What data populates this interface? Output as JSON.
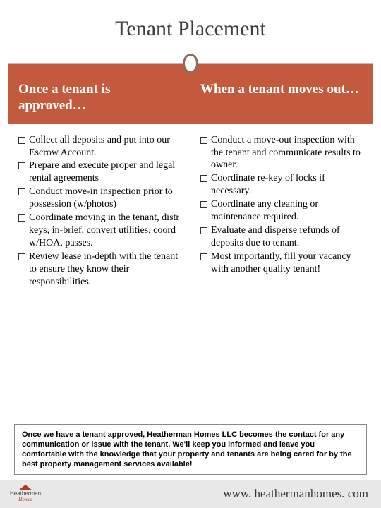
{
  "title": "Tenant Placement",
  "colors": {
    "header_bg": "#c45a3d",
    "header_text": "#ffffff",
    "title_text": "#3f3f3f",
    "body_text": "#000000",
    "divider_ring": "#8b6f5e",
    "bottom_bg": "#e8e8e8",
    "logo_accent": "#b33a2a"
  },
  "fonts": {
    "title_size": 30,
    "header_size": 19,
    "item_size": 14,
    "footer_size": 11,
    "url_size": 17
  },
  "left": {
    "heading": "Once a tenant is approved…",
    "items": [
      "Collect all deposits and put into our Escrow Account.",
      "Prepare and execute proper and legal rental agreements",
      "Conduct move-in inspection prior to possession (w/photos)",
      "Coordinate moving in the tenant, distr keys, in-brief, convert utilities, coord w/HOA, passes.",
      "Review lease in-depth with the tenant to ensure they know their responsibilities."
    ]
  },
  "right": {
    "heading": "When a tenant moves out…",
    "items": [
      "Conduct a move-out inspection with the tenant and communicate results to owner.",
      "Coordinate re-key of locks if necessary.",
      "Coordinate any cleaning or maintenance required.",
      "Evaluate and disperse refunds of deposits due to tenant.",
      "Most importantly, fill your vacancy with another quality tenant!"
    ]
  },
  "footer_note": "Once we have a tenant approved, Heatherman Homes LLC becomes the contact for any communication or issue with the tenant. We'll keep you informed and leave you comfortable with the knowledge that your property and tenants are being cared for by the best property management services available!",
  "logo": {
    "name": "Heatherman",
    "sub": "Homes"
  },
  "url": "www. heathermanhomes. com"
}
